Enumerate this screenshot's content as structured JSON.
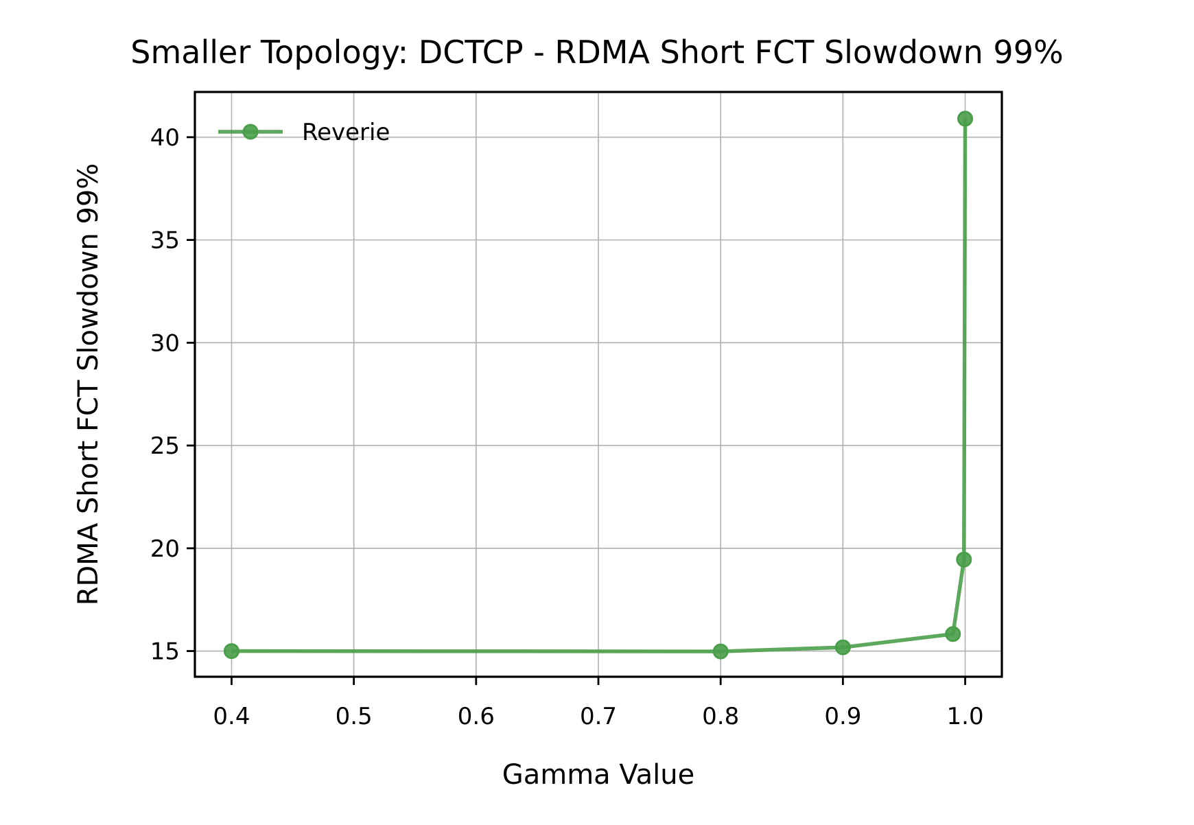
{
  "chart_data": {
    "type": "line",
    "title": "Smaller Topology: DCTCP - RDMA Short FCT Slowdown 99%",
    "xlabel": "Gamma Value",
    "ylabel": "RDMA Short FCT Slowdown 99%",
    "xlim": [
      0.37,
      1.03
    ],
    "ylim": [
      13.75,
      42.2
    ],
    "x_ticks": [
      0.4,
      0.5,
      0.6,
      0.7,
      0.8,
      0.9,
      1.0
    ],
    "x_tick_labels": [
      "0.4",
      "0.5",
      "0.6",
      "0.7",
      "0.8",
      "0.9",
      "1.0"
    ],
    "y_ticks": [
      15,
      20,
      25,
      30,
      35,
      40
    ],
    "y_tick_labels": [
      "15",
      "20",
      "25",
      "30",
      "35",
      "40"
    ],
    "grid": true,
    "legend_position": "upper-left",
    "series": [
      {
        "name": "Reverie",
        "color": "#4a9e4a",
        "marker": "circle",
        "x": [
          0.4,
          0.8,
          0.9,
          0.99,
          0.999,
          1.0
        ],
        "y": [
          15.0,
          14.98,
          15.18,
          15.83,
          19.45,
          40.9
        ]
      }
    ]
  }
}
